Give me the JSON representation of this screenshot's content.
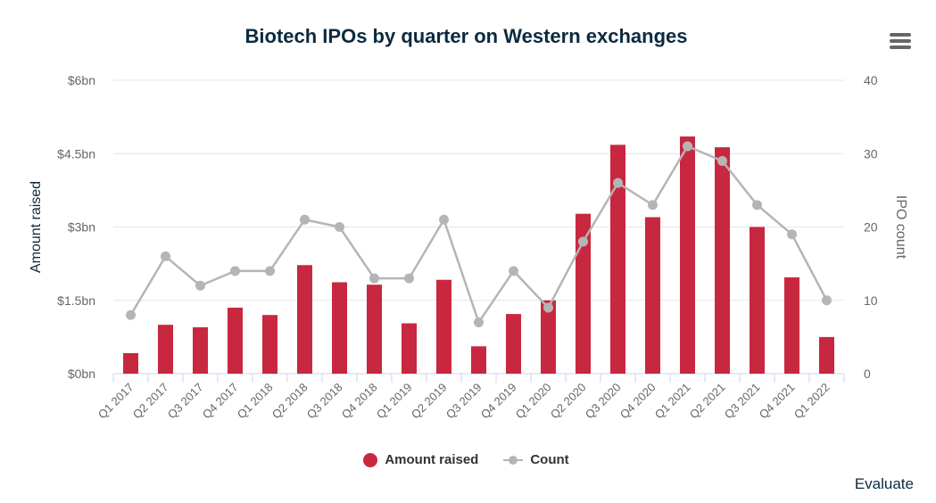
{
  "title": "Biotech IPOs by quarter on Western exchanges",
  "credit": "Evaluate",
  "colors": {
    "bar": "#c8283f",
    "line": "#b5b5b5",
    "grid": "#e6e6e6",
    "axis_text": "#666666",
    "title": "#0b2a3f"
  },
  "chart_data": {
    "type": "bar",
    "title": "Biotech IPOs by quarter on Western exchanges",
    "categories": [
      "Q1 2017",
      "Q2 2017",
      "Q3 2017",
      "Q4 2017",
      "Q1 2018",
      "Q2 2018",
      "Q3 2018",
      "Q4 2018",
      "Q1 2019",
      "Q2 2019",
      "Q3 2019",
      "Q4 2019",
      "Q1 2020",
      "Q2 2020",
      "Q3 2020",
      "Q4 2020",
      "Q1 2021",
      "Q2 2021",
      "Q3 2021",
      "Q4 2021",
      "Q1 2022"
    ],
    "series": [
      {
        "name": "Amount raised",
        "type": "bar",
        "axis": "left",
        "values": [
          0.42,
          1.0,
          0.95,
          1.35,
          1.2,
          2.22,
          1.87,
          1.82,
          1.03,
          1.92,
          0.56,
          1.22,
          1.5,
          3.27,
          4.68,
          3.2,
          4.85,
          4.63,
          3.0,
          1.97,
          0.75
        ]
      },
      {
        "name": "Count",
        "type": "line",
        "axis": "right",
        "values": [
          8,
          16,
          12,
          14,
          14,
          21,
          20,
          13,
          13,
          21,
          7,
          14,
          9,
          18,
          26,
          23,
          31,
          29,
          23,
          19,
          10
        ]
      }
    ],
    "ylabel": "Amount raised",
    "y2label": "IPO count",
    "ylim": [
      0,
      6
    ],
    "y2lim": [
      0,
      40
    ],
    "y_ticks": [
      "$0bn",
      "$1.5bn",
      "$3bn",
      "$4.5bn",
      "$6bn"
    ],
    "y2_ticks": [
      "0",
      "10",
      "20",
      "30",
      "40"
    ],
    "grid": true,
    "legend": "bottom-center"
  }
}
